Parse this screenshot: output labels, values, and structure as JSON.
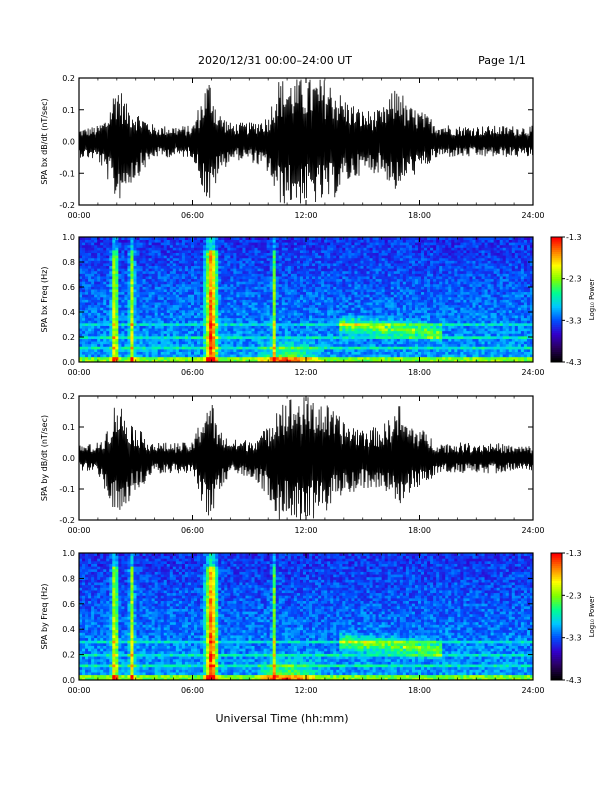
{
  "header": {
    "title": "2020/12/31   00:00–24:00 UT",
    "page": "Page 1/1"
  },
  "footer": {
    "xlabel": "Universal Time (hh:mm)"
  },
  "colors": {
    "trace": "#000000",
    "colormap": [
      "#000000",
      "#2a0060",
      "#3300cc",
      "#0050ff",
      "#00c8ff",
      "#00ff90",
      "#80ff00",
      "#ffff00",
      "#ff8000",
      "#ff0000"
    ]
  },
  "chart_data": [
    {
      "type": "line",
      "ylabel": "SPA bx dB/dt (nT/sec)",
      "xlim": [
        0,
        24
      ],
      "ylim": [
        -0.2,
        0.2
      ],
      "xticks": [
        "00:00",
        "06:00",
        "12:00",
        "18:00",
        "24:00"
      ],
      "yticks": [
        "-0.2",
        "-0.1",
        "0.0",
        "0.1",
        "0.2"
      ],
      "series": [
        {
          "x": [
            0,
            1,
            1.5,
            2,
            2.5,
            3,
            4,
            5,
            6,
            6.8,
            7,
            7.3,
            8,
            9,
            10,
            10.5,
            11,
            11.5,
            12,
            12.5,
            13,
            13.5,
            14,
            15,
            16,
            16.5,
            17,
            17.2,
            18,
            19,
            20,
            21,
            22,
            23,
            24
          ],
          "y": [
            0.04,
            0.05,
            0.08,
            0.2,
            0.12,
            0.1,
            0.05,
            0.05,
            0.05,
            0.2,
            0.2,
            0.1,
            0.06,
            0.06,
            0.08,
            0.2,
            0.2,
            0.2,
            0.2,
            0.2,
            0.2,
            0.18,
            0.14,
            0.1,
            0.1,
            0.15,
            0.2,
            0.12,
            0.1,
            0.06,
            0.05,
            0.05,
            0.05,
            0.05,
            0.05
          ],
          "y_neg": [
            -0.05,
            -0.06,
            -0.12,
            -0.2,
            -0.15,
            -0.12,
            -0.05,
            -0.05,
            -0.05,
            -0.2,
            -0.2,
            -0.12,
            -0.06,
            -0.06,
            -0.1,
            -0.2,
            -0.2,
            -0.2,
            -0.2,
            -0.2,
            -0.2,
            -0.18,
            -0.14,
            -0.1,
            -0.1,
            -0.14,
            -0.18,
            -0.12,
            -0.1,
            -0.05,
            -0.05,
            -0.05,
            -0.05,
            -0.05,
            -0.05
          ]
        }
      ]
    },
    {
      "type": "heatmap",
      "ylabel": "SPA bx Freq (Hz)",
      "xlim": [
        0,
        24
      ],
      "ylim": [
        0.0,
        1.0
      ],
      "xticks": [
        "00:00",
        "06:00",
        "12:00",
        "18:00",
        "24:00"
      ],
      "yticks": [
        "0.0",
        "0.2",
        "0.4",
        "0.6",
        "0.8",
        "1.0"
      ],
      "colorbar": {
        "label": "Log₁₀ Power",
        "ticks": [
          "-1.3",
          "-2.3",
          "-3.3",
          "-4.3"
        ],
        "range": [
          -4.3,
          -1.3
        ]
      }
    },
    {
      "type": "line",
      "ylabel": "SPA by dB/dt (nT/sec)",
      "xlim": [
        0,
        24
      ],
      "ylim": [
        -0.2,
        0.2
      ],
      "xticks": [
        "00:00",
        "06:00",
        "12:00",
        "18:00",
        "24:00"
      ],
      "yticks": [
        "-0.2",
        "-0.1",
        "0.0",
        "0.1",
        "0.2"
      ],
      "series": [
        {
          "x": [
            0,
            1,
            1.5,
            2,
            2.5,
            3,
            4,
            5,
            6,
            6.8,
            7,
            7.3,
            8,
            9,
            10,
            10.5,
            11,
            11.5,
            12,
            12.5,
            13,
            13.5,
            14,
            15,
            16,
            16.5,
            17,
            17.2,
            18,
            19,
            20,
            21,
            22,
            23,
            24
          ],
          "y": [
            0.04,
            0.05,
            0.1,
            0.2,
            0.14,
            0.1,
            0.05,
            0.05,
            0.05,
            0.2,
            0.2,
            0.1,
            0.06,
            0.06,
            0.1,
            0.2,
            0.2,
            0.2,
            0.2,
            0.2,
            0.18,
            0.15,
            0.12,
            0.1,
            0.1,
            0.14,
            0.18,
            0.12,
            0.1,
            0.05,
            0.05,
            0.05,
            0.05,
            0.04,
            0.04
          ],
          "y_neg": [
            -0.04,
            -0.05,
            -0.12,
            -0.2,
            -0.16,
            -0.12,
            -0.05,
            -0.05,
            -0.05,
            -0.2,
            -0.2,
            -0.12,
            -0.06,
            -0.06,
            -0.12,
            -0.2,
            -0.2,
            -0.2,
            -0.2,
            -0.2,
            -0.18,
            -0.15,
            -0.12,
            -0.1,
            -0.1,
            -0.14,
            -0.18,
            -0.12,
            -0.1,
            -0.05,
            -0.05,
            -0.05,
            -0.05,
            -0.04,
            -0.04
          ]
        }
      ]
    },
    {
      "type": "heatmap",
      "ylabel": "SPA by Freq (Hz)",
      "xlim": [
        0,
        24
      ],
      "ylim": [
        0.0,
        1.0
      ],
      "xticks": [
        "00:00",
        "06:00",
        "12:00",
        "18:00",
        "24:00"
      ],
      "yticks": [
        "0.0",
        "0.2",
        "0.4",
        "0.6",
        "0.8",
        "1.0"
      ],
      "colorbar": {
        "label": "Log₁₀ Power",
        "ticks": [
          "-1.3",
          "-2.3",
          "-3.3",
          "-4.3"
        ],
        "range": [
          -4.3,
          -1.3
        ]
      }
    }
  ]
}
